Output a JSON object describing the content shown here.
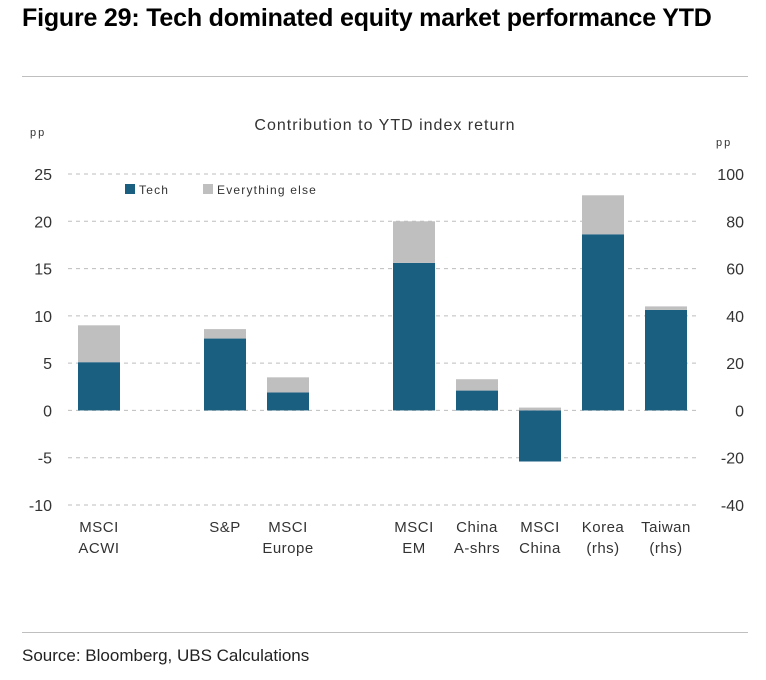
{
  "figure": {
    "title": "Figure 29: Tech dominated equity market performance YTD",
    "source": "Source: Bloomberg, UBS Calculations"
  },
  "chart_data": {
    "type": "bar",
    "stacked": true,
    "title": "Contribution to YTD index return",
    "ylabel_left": "pp",
    "ylabel_right": "pp",
    "ylim_left": [
      -10,
      25
    ],
    "yticks_left": [
      -10,
      -5,
      0,
      5,
      10,
      15,
      20,
      25
    ],
    "ylim_right": [
      -40,
      100
    ],
    "yticks_right": [
      -40,
      -20,
      0,
      20,
      40,
      60,
      80,
      100
    ],
    "grid": "horizontal dashed",
    "legend_position": "top-left",
    "categories": [
      {
        "lines": [
          "MSCI",
          "ACWI"
        ],
        "slot": 0,
        "axis": "left"
      },
      {
        "lines": [
          "S&P"
        ],
        "slot": 2,
        "axis": "left"
      },
      {
        "lines": [
          "MSCI",
          "Europe"
        ],
        "slot": 3,
        "axis": "left"
      },
      {
        "lines": [
          "MSCI",
          "EM"
        ],
        "slot": 5,
        "axis": "left"
      },
      {
        "lines": [
          "China",
          "A-shrs"
        ],
        "slot": 6,
        "axis": "left"
      },
      {
        "lines": [
          "MSCI",
          "China"
        ],
        "slot": 7,
        "axis": "left"
      },
      {
        "lines": [
          "Korea",
          "(rhs)"
        ],
        "slot": 8,
        "axis": "right"
      },
      {
        "lines": [
          "Taiwan",
          "(rhs)"
        ],
        "slot": 9,
        "axis": "right"
      }
    ],
    "series": [
      {
        "name": "Tech",
        "color": "#1a5e80",
        "values": [
          5.1,
          7.6,
          1.9,
          15.6,
          2.1,
          -5.4,
          74.5,
          42.5
        ]
      },
      {
        "name": "Everything else",
        "color": "#bfbfbf",
        "values": [
          3.9,
          1.0,
          1.6,
          4.4,
          1.2,
          0.3,
          16.5,
          1.5
        ]
      }
    ]
  }
}
